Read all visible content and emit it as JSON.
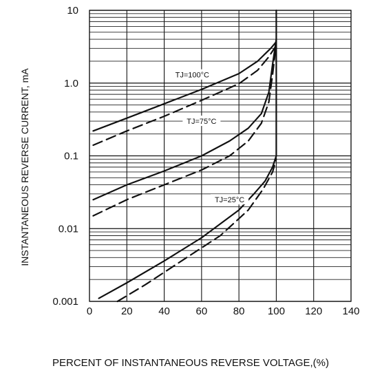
{
  "chart_data": {
    "type": "line",
    "xlabel": "PERCENT OF INSTANTANEOUS REVERSE VOLTAGE,(%)",
    "ylabel": "INSTANTANEOUS REVERSE CURRENT, mA",
    "x_ticks": [
      "0",
      "20",
      "40",
      "60",
      "80",
      "100",
      "120",
      "140"
    ],
    "y_ticks": [
      "10",
      "1.0",
      "0.1",
      "0.01",
      "0.001"
    ],
    "xlim": [
      0,
      140
    ],
    "ylim": [
      0.001,
      10
    ],
    "y_scale": "log",
    "grid": true,
    "series": [
      {
        "style": "solid",
        "x": [
          2,
          20,
          40,
          60,
          80,
          90,
          97,
          100
        ],
        "y": [
          0.22,
          0.33,
          0.52,
          0.82,
          1.35,
          2.0,
          3.0,
          3.7
        ]
      },
      {
        "style": "dashed",
        "x": [
          2,
          20,
          40,
          60,
          80,
          90,
          96,
          100
        ],
        "y": [
          0.14,
          0.22,
          0.35,
          0.58,
          0.98,
          1.5,
          2.3,
          3.3
        ]
      },
      {
        "style": "solid",
        "x": [
          2,
          20,
          40,
          60,
          75,
          85,
          92,
          96,
          98,
          100
        ],
        "y": [
          0.025,
          0.04,
          0.062,
          0.1,
          0.16,
          0.24,
          0.38,
          0.75,
          1.8,
          4.0
        ]
      },
      {
        "style": "dashed",
        "x": [
          2,
          20,
          40,
          60,
          75,
          85,
          92,
          96,
          98,
          100
        ],
        "y": [
          0.015,
          0.025,
          0.04,
          0.064,
          0.1,
          0.16,
          0.28,
          0.55,
          1.3,
          3.5
        ]
      },
      {
        "style": "solid",
        "x": [
          5,
          20,
          40,
          60,
          80,
          88,
          94,
          98,
          100
        ],
        "y": [
          0.0011,
          0.0018,
          0.0036,
          0.0075,
          0.018,
          0.03,
          0.045,
          0.07,
          0.1
        ]
      },
      {
        "style": "dashed",
        "x": [
          15,
          30,
          50,
          70,
          85,
          93,
          98,
          100
        ],
        "y": [
          0.001,
          0.0017,
          0.0037,
          0.008,
          0.018,
          0.035,
          0.06,
          0.09
        ]
      },
      {
        "style": "solid",
        "x": [
          100,
          100
        ],
        "y": [
          0.1,
          10
        ]
      }
    ],
    "annotations": [
      {
        "text": "TJ=100°C",
        "x": 55,
        "y": 1.3
      },
      {
        "text": "TJ=75°C",
        "x": 60,
        "y": 0.3
      },
      {
        "text": "TJ=25°C",
        "x": 75,
        "y": 0.025
      }
    ]
  }
}
